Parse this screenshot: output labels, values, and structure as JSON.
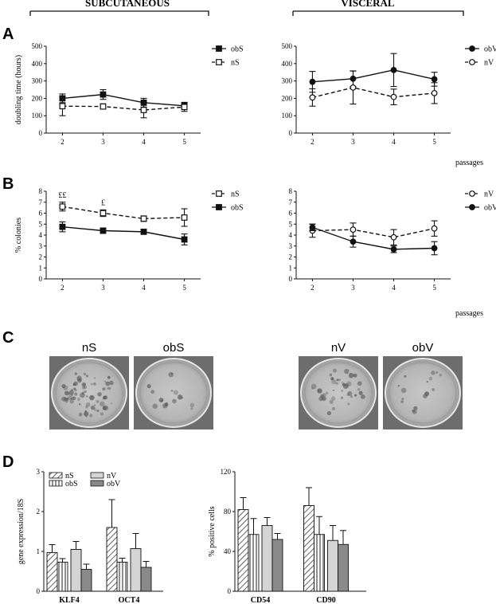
{
  "headers": {
    "subcutaneous": "SUBCUTANEOUS",
    "visceral": "VISCERAL"
  },
  "panels": {
    "a": "A",
    "b": "B",
    "c": "C",
    "d": "D"
  },
  "passages_label": "passages",
  "colors": {
    "bar_light": "#d4d4d4",
    "bar_dark": "#8a8a8a",
    "line": "#111111"
  },
  "chart_data": [
    {
      "id": "A-subcutaneous",
      "type": "line",
      "ylabel": "doubling time (hours)",
      "ylim": [
        0,
        500
      ],
      "yticks": [
        0,
        100,
        200,
        300,
        400,
        500
      ],
      "x": [
        2,
        3,
        4,
        5
      ],
      "xlim": [
        1.6,
        5.4
      ],
      "legend": "top-right",
      "series": [
        {
          "name": "obS",
          "marker": "filled-square",
          "dash": false,
          "values": [
            200,
            222,
            175,
            157
          ],
          "err": [
            25,
            28,
            25,
            20
          ]
        },
        {
          "name": "nS",
          "marker": "open-square",
          "dash": true,
          "values": [
            155,
            153,
            133,
            150
          ],
          "err": [
            55,
            15,
            45,
            25
          ]
        }
      ]
    },
    {
      "id": "A-visceral",
      "type": "line",
      "ylim": [
        0,
        500
      ],
      "yticks": [
        0,
        100,
        200,
        300,
        400,
        500
      ],
      "x": [
        2,
        3,
        4,
        5
      ],
      "xlim": [
        1.6,
        5.4
      ],
      "legend": "top-right",
      "series": [
        {
          "name": "obV",
          "marker": "filled-circle",
          "dash": false,
          "values": [
            295,
            313,
            363,
            310
          ],
          "err": [
            60,
            45,
            95,
            40
          ]
        },
        {
          "name": "nV",
          "marker": "open-circle",
          "dash": true,
          "values": [
            205,
            262,
            208,
            230
          ],
          "err": [
            50,
            95,
            45,
            60
          ]
        }
      ]
    },
    {
      "id": "B-subcutaneous",
      "type": "line",
      "ylabel": "% colonies",
      "ylim": [
        0,
        8
      ],
      "yticks": [
        0,
        1,
        2,
        3,
        4,
        5,
        6,
        7,
        8
      ],
      "x": [
        2,
        3,
        4,
        5
      ],
      "xlim": [
        1.6,
        5.4
      ],
      "legend": "top-right",
      "annotations": [
        {
          "x": 2,
          "text": "££"
        },
        {
          "x": 3,
          "text": "£"
        }
      ],
      "series": [
        {
          "name": "nS",
          "marker": "open-square",
          "dash": true,
          "values": [
            6.6,
            6.0,
            5.5,
            5.6
          ],
          "err": [
            0.4,
            0.3,
            0.25,
            0.8
          ]
        },
        {
          "name": "obS",
          "marker": "filled-square",
          "dash": false,
          "values": [
            4.75,
            4.4,
            4.3,
            3.6
          ],
          "err": [
            0.45,
            0.25,
            0.2,
            0.5
          ]
        }
      ]
    },
    {
      "id": "B-visceral",
      "type": "line",
      "ylim": [
        0,
        8
      ],
      "yticks": [
        0,
        1,
        2,
        3,
        4,
        5,
        6,
        7,
        8
      ],
      "x": [
        2,
        3,
        4,
        5
      ],
      "xlim": [
        1.6,
        5.4
      ],
      "legend": "top-right",
      "series": [
        {
          "name": "nV",
          "marker": "open-circle",
          "dash": true,
          "values": [
            4.4,
            4.5,
            3.8,
            4.6
          ],
          "err": [
            0.6,
            0.6,
            0.7,
            0.7
          ]
        },
        {
          "name": "obV",
          "marker": "filled-circle",
          "dash": false,
          "values": [
            4.7,
            3.4,
            2.7,
            2.8
          ],
          "err": [
            0.3,
            0.5,
            0.3,
            0.6
          ]
        }
      ]
    },
    {
      "id": "D-gene",
      "type": "bar",
      "ylabel": "gene expression/18S",
      "ylim": [
        0,
        3
      ],
      "yticks": [
        0,
        1,
        2,
        3
      ],
      "categories": [
        "KLF4",
        "OCT4"
      ],
      "legend_items": [
        "nS",
        "obS",
        "nV",
        "obV"
      ],
      "series": [
        {
          "name": "nS",
          "fill": "hatch",
          "values": [
            0.97,
            1.6
          ],
          "err": [
            0.2,
            0.7
          ]
        },
        {
          "name": "obS",
          "fill": "vstripe",
          "values": [
            0.73,
            0.73
          ],
          "err": [
            0.09,
            0.1
          ]
        },
        {
          "name": "nV",
          "fill": "light",
          "values": [
            1.05,
            1.07
          ],
          "err": [
            0.2,
            0.38
          ]
        },
        {
          "name": "obV",
          "fill": "dark",
          "values": [
            0.55,
            0.6
          ],
          "err": [
            0.13,
            0.15
          ]
        }
      ]
    },
    {
      "id": "D-cells",
      "type": "bar",
      "ylabel": "% positive cells",
      "ylim": [
        0,
        120
      ],
      "yticks": [
        0,
        40,
        80,
        120
      ],
      "categories": [
        "CD54",
        "CD90"
      ],
      "series": [
        {
          "name": "nS",
          "fill": "hatch",
          "values": [
            82,
            86
          ],
          "err": [
            12,
            18
          ]
        },
        {
          "name": "obS",
          "fill": "vstripe",
          "values": [
            57,
            57
          ],
          "err": [
            16,
            18
          ]
        },
        {
          "name": "nV",
          "fill": "light",
          "values": [
            66,
            51
          ],
          "err": [
            8,
            15
          ]
        },
        {
          "name": "obV",
          "fill": "dark",
          "values": [
            52,
            47
          ],
          "err": [
            6,
            14
          ]
        }
      ]
    }
  ],
  "dishes": [
    {
      "label": "nS",
      "density": "high"
    },
    {
      "label": "obS",
      "density": "low"
    },
    {
      "label": "nV",
      "density": "medium"
    },
    {
      "label": "obV",
      "density": "low"
    }
  ]
}
